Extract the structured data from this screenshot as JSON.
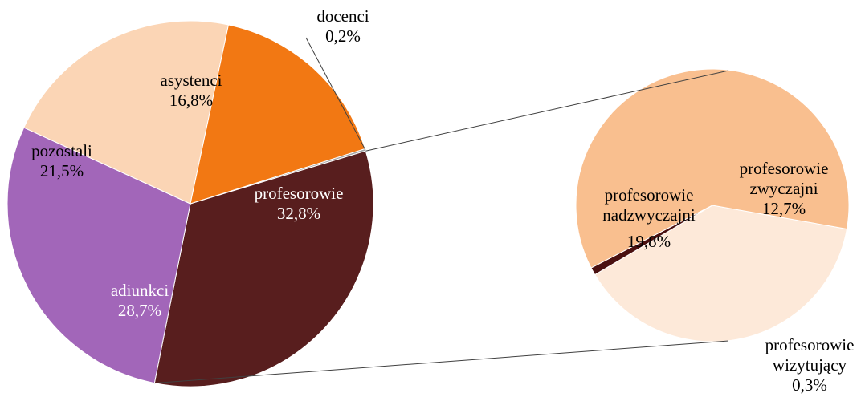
{
  "chart_data": {
    "type": "pie",
    "variant": "bar-of-pie",
    "title": "",
    "main_pie": {
      "slices": [
        {
          "id": "docenci",
          "lines": [
            "docenci"
          ],
          "value_label": "0,2%",
          "value": 0.2,
          "color": "#a6a6a6",
          "label_color": "#000000"
        },
        {
          "id": "profesorowie",
          "lines": [
            "profesorowie"
          ],
          "value_label": "32,8%",
          "value": 32.8,
          "color": "#581e1e",
          "label_color": "#ffffff"
        },
        {
          "id": "adiunkci",
          "lines": [
            "adiunkci"
          ],
          "value_label": "28,7%",
          "value": 28.7,
          "color": "#a266b9",
          "label_color": "#ffffff"
        },
        {
          "id": "pozostali",
          "lines": [
            "pozostali"
          ],
          "value_label": "21,5%",
          "value": 21.5,
          "color": "#fbd5b5",
          "label_color": "#000000"
        },
        {
          "id": "asystenci",
          "lines": [
            "asystenci"
          ],
          "value_label": "16,8%",
          "value": 16.8,
          "color": "#f27813",
          "label_color": "#000000"
        }
      ]
    },
    "secondary_pie": {
      "breakdown_of": "profesorowie",
      "slices": [
        {
          "id": "zwyczajni",
          "lines": [
            "profesorowie",
            "zwyczajni"
          ],
          "value_label": "12,7%",
          "value": 12.7,
          "color": "#fde9d9",
          "label_color": "#000000"
        },
        {
          "id": "wizytujacy",
          "lines": [
            "profesorowie",
            "wizytujący"
          ],
          "value_label": "0,3%",
          "value": 0.3,
          "color": "#4a1010",
          "label_color": "#000000"
        },
        {
          "id": "nadzwyczajni",
          "lines": [
            "profesorowie",
            "nadzwyczajni"
          ],
          "value_label": "19,8%",
          "value": 19.8,
          "color": "#f9bf8f",
          "label_color": "#000000"
        }
      ]
    },
    "legend": "none"
  }
}
